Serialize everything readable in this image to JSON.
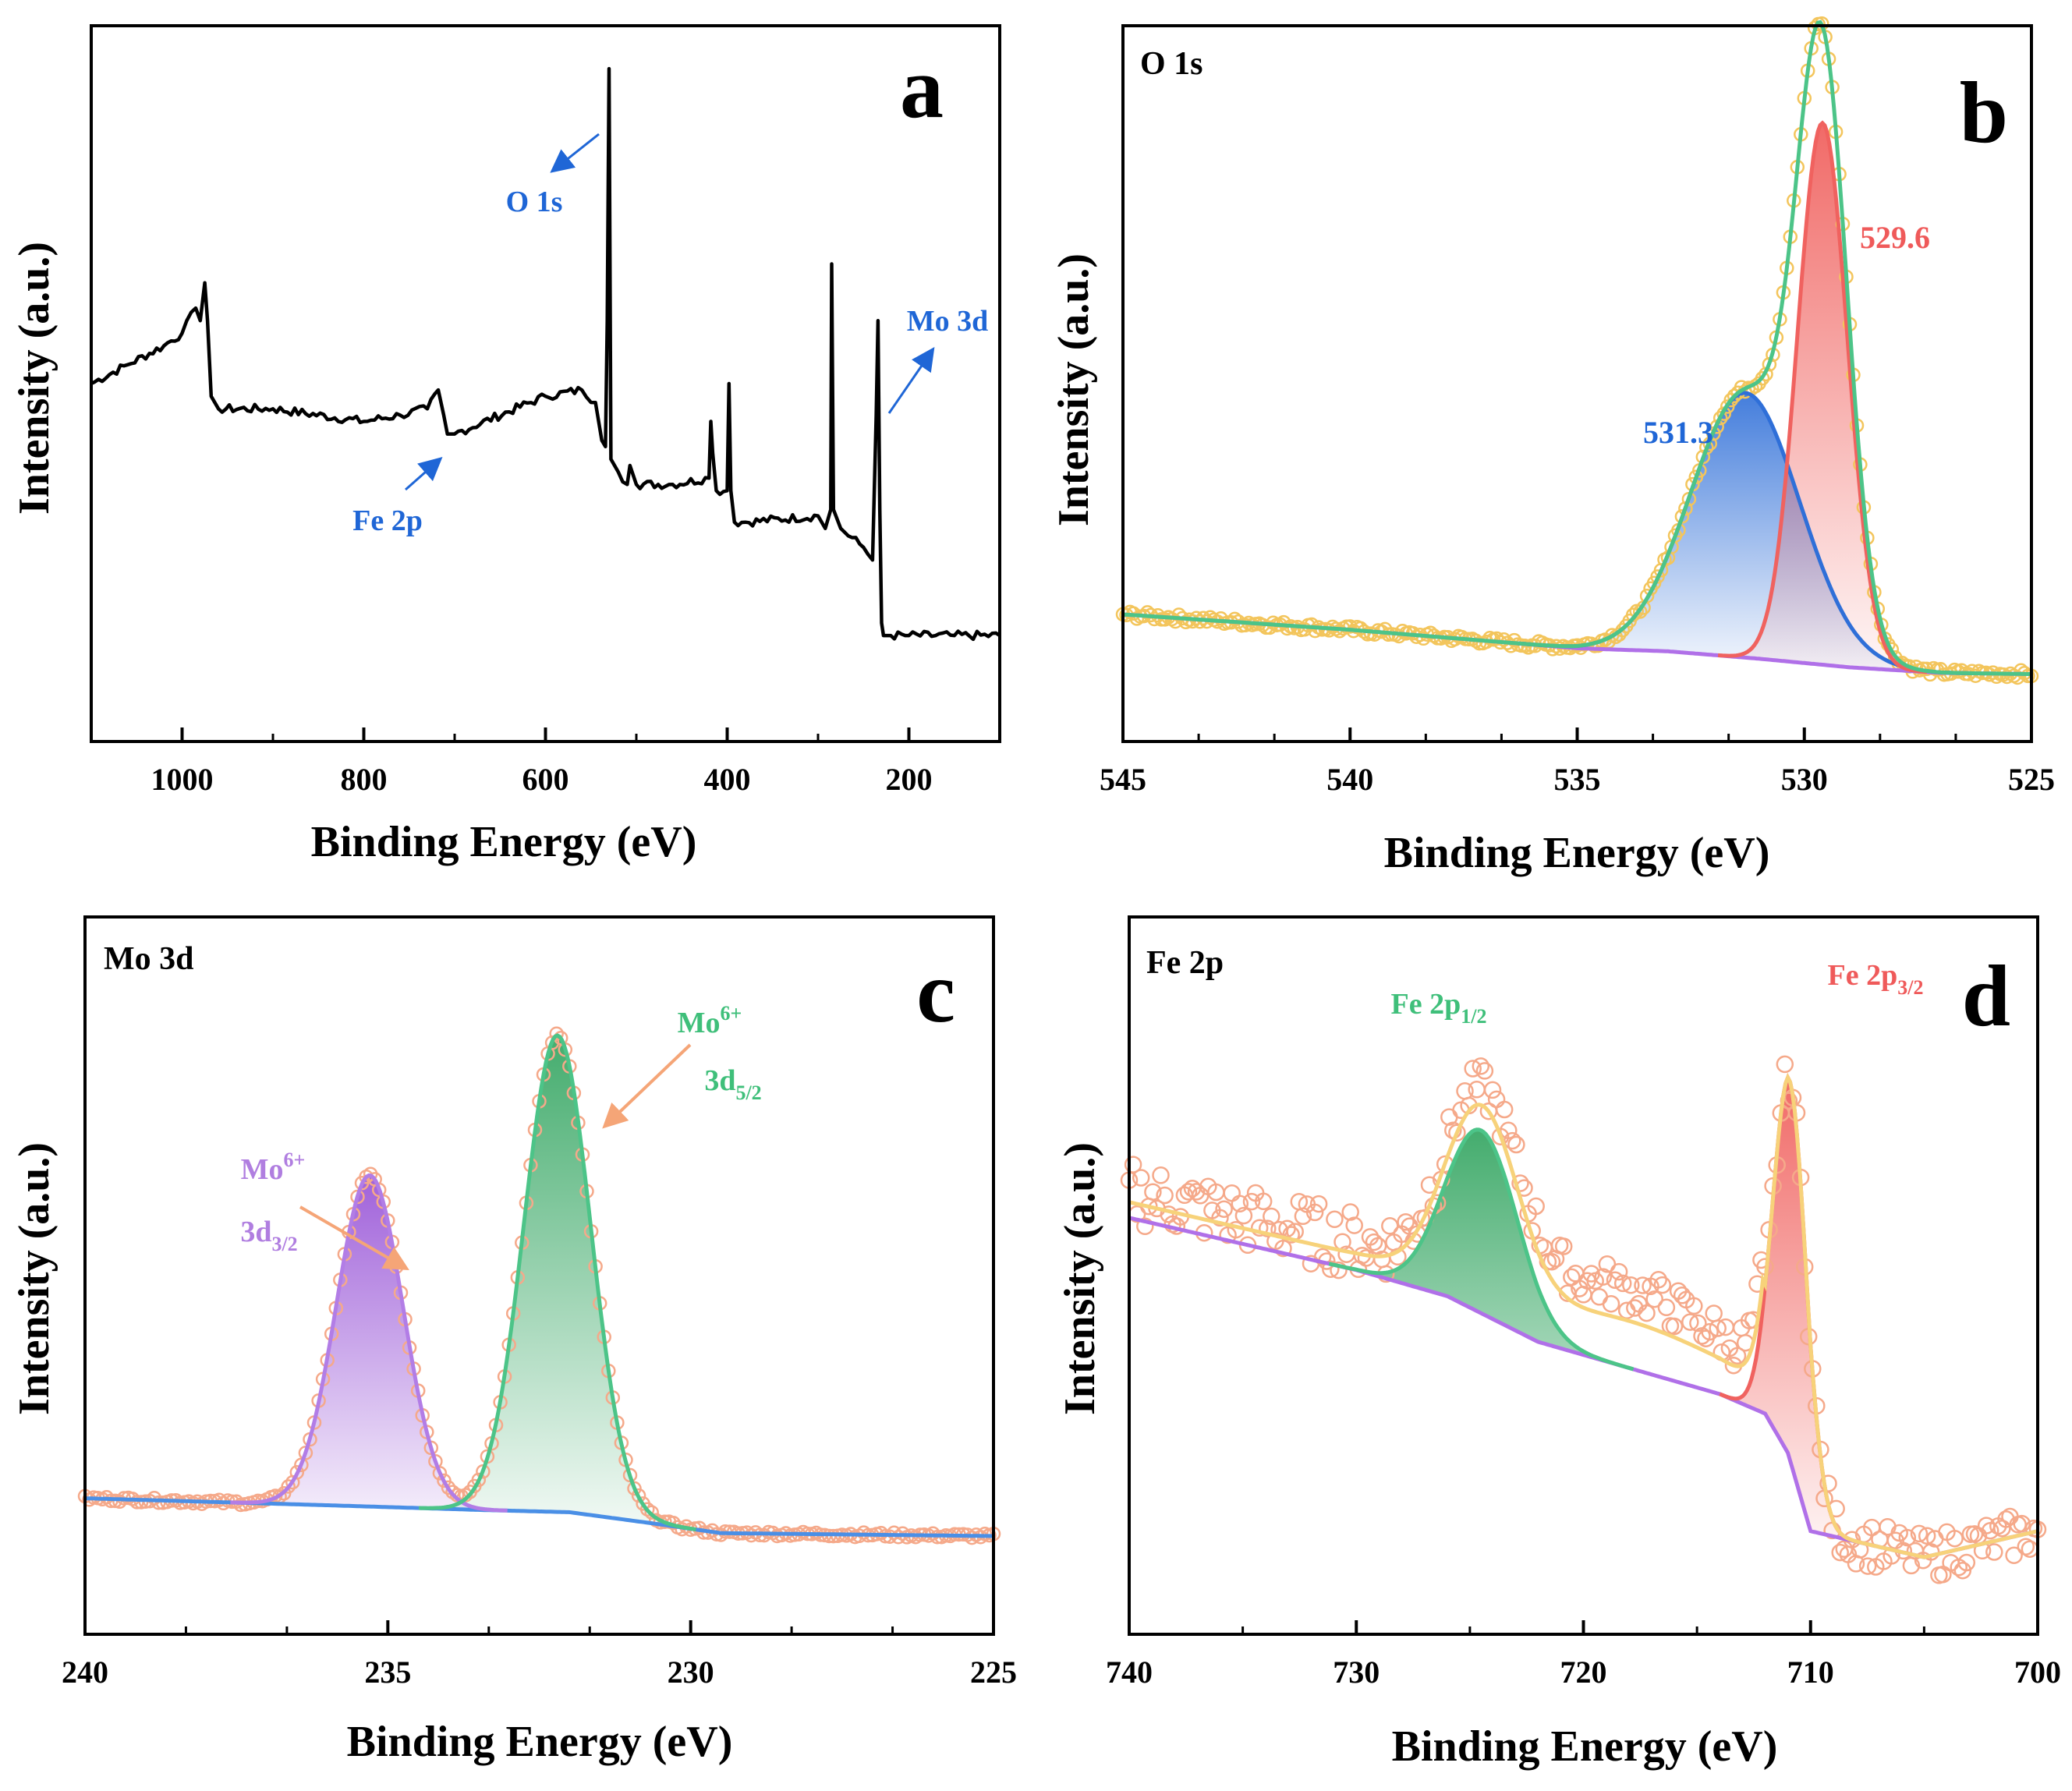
{
  "colors": {
    "frame": "#000000",
    "survey": "#000000",
    "annot_blue": "#1f66d6",
    "arrow_orange": "#f5a577",
    "raw_yellow": "#f3c55c",
    "raw_orange": "#f5a98a",
    "fit_green": "#4cc488",
    "peak_red": "#f0625f",
    "peak_blue": "#2f6fd8",
    "peak_purple": "#b27de6",
    "baseline_purple": "#b070e8",
    "baseline_blue": "#4a8fe6",
    "envelope_yellow": "#f7d27a",
    "label_red": "#ef5a5a",
    "label_green": "#3fbf7a",
    "label_purple": "#b07ee0"
  },
  "chart_data": [
    {
      "panel": "a",
      "type": "line",
      "panel_letter": "a",
      "xlabel": "Binding Energy (eV)",
      "ylabel": "Intensity (a.u.)",
      "xlim": [
        1100,
        100
      ],
      "ylim": [
        0,
        100
      ],
      "xticks": [
        1000,
        800,
        600,
        400,
        200
      ],
      "xtick_labels": [
        "1000",
        "800",
        "600",
        "400",
        "200"
      ],
      "series": [
        {
          "name": "survey",
          "x": [
            1100,
            1060,
            1020,
            1000,
            985,
            980,
            975,
            972,
            968,
            960,
            900,
            800,
            760,
            730,
            718,
            712,
            708,
            700,
            600,
            560,
            545,
            538,
            534,
            532,
            530,
            528,
            520,
            510,
            507,
            500,
            460,
            420,
            418,
            416,
            412,
            400,
            398,
            396,
            392,
            380,
            300,
            292,
            286,
            285,
            283,
            275,
            250,
            240,
            236,
            234,
            232,
            230,
            228,
            226,
            220,
            200,
            150,
            100
          ],
          "y": [
            50,
            53,
            56,
            58,
            62,
            60,
            66,
            60,
            48,
            46,
            46,
            44,
            45,
            46,
            49,
            45,
            42,
            42,
            48,
            49,
            47,
            41,
            40,
            60,
            100,
            38,
            36,
            34,
            37,
            34,
            34,
            35,
            44,
            39,
            33,
            33,
            50,
            33,
            28,
            28,
            29,
            27,
            30,
            69,
            30,
            27,
            24,
            22,
            45,
            60,
            30,
            12,
            10,
            10,
            10,
            10,
            10,
            10
          ]
        }
      ],
      "annotations": [
        {
          "text": "O 1s",
          "x": 530
        },
        {
          "text": "Mo 3d",
          "x": 232
        },
        {
          "text": "Fe 2p",
          "x": 712
        }
      ]
    },
    {
      "panel": "b",
      "type": "line",
      "panel_letter": "b",
      "title": "O 1s",
      "xlabel": "Binding Energy (eV)",
      "ylabel": "Intensity (a.u.)",
      "xlim": [
        545,
        525
      ],
      "ylim": [
        0,
        100
      ],
      "xticks": [
        545,
        540,
        535,
        530,
        525
      ],
      "xtick_labels": [
        "545",
        "540",
        "535",
        "530",
        "525"
      ],
      "baseline": {
        "x": [
          545,
          540,
          535,
          533,
          531,
          529,
          527,
          525
        ],
        "y": [
          16,
          13.5,
          10.5,
          10,
          8.8,
          7.4,
          6.5,
          6.3
        ]
      },
      "peaks": [
        {
          "name": "531.3",
          "label": "531.3",
          "center": 531.3,
          "height": 43,
          "sigma": 1.2
        },
        {
          "name": "529.6",
          "label": "529.6",
          "center": 529.6,
          "height": 88,
          "sigma": 0.55
        }
      ],
      "raw_data_style": "open circles",
      "legend": "none"
    },
    {
      "panel": "c",
      "type": "line",
      "panel_letter": "c",
      "title": "Mo 3d",
      "xlabel": "Binding Energy (eV)",
      "ylabel": "Intensity (a.u.)",
      "xlim": [
        240,
        225
      ],
      "ylim": [
        0,
        100
      ],
      "xticks": [
        240,
        235,
        230,
        225
      ],
      "xtick_labels": [
        "240",
        "235",
        "230",
        "225"
      ],
      "baseline": {
        "x": [
          240,
          236,
          233.5,
          232,
          230.5,
          229.5,
          225
        ],
        "y": [
          16,
          14.8,
          14,
          13.6,
          11.5,
          10,
          9.5
        ]
      },
      "peaks": [
        {
          "name": "Mo6+ 3d3/2",
          "center": 235.3,
          "height": 57,
          "sigma": 0.55
        },
        {
          "name": "Mo6+ 3d5/2",
          "center": 232.2,
          "height": 82,
          "sigma": 0.55
        }
      ],
      "peak_labels": [
        {
          "main": "Mo",
          "sup": "6+",
          "line2": "3d",
          "sub": "3/2"
        },
        {
          "main": "Mo",
          "sup": "6+",
          "line2": "3d",
          "sub": "5/2"
        }
      ],
      "raw_data_style": "open circles",
      "legend": "none"
    },
    {
      "panel": "d",
      "type": "line",
      "panel_letter": "d",
      "title": "Fe 2p",
      "xlabel": "Binding Energy (eV)",
      "ylabel": "Intensity (a.u.)",
      "xlim": [
        740,
        700
      ],
      "ylim": [
        0,
        100
      ],
      "xticks": [
        740,
        730,
        720,
        710,
        700
      ],
      "xtick_labels": [
        "740",
        "730",
        "720",
        "710",
        "700"
      ],
      "baseline": {
        "x": [
          740,
          735,
          730,
          726,
          722,
          718,
          714,
          712,
          711,
          710,
          705,
          700
        ],
        "y": [
          66,
          62,
          58,
          54,
          47,
          43,
          39,
          36,
          30,
          18,
          14,
          18
        ]
      },
      "peaks": [
        {
          "name": "Fe 2p1/2",
          "center": 724.5,
          "height": 28,
          "sigma": 1.6
        },
        {
          "name": "Fe 2p3/2",
          "center": 710.9,
          "height": 58,
          "sigma": 0.75
        }
      ],
      "peak_labels": [
        {
          "main": "Fe 2p",
          "sub": "1/2"
        },
        {
          "main": "Fe 2p",
          "sub": "3/2"
        }
      ],
      "raw_data_style": "open circles",
      "legend": "none"
    }
  ]
}
